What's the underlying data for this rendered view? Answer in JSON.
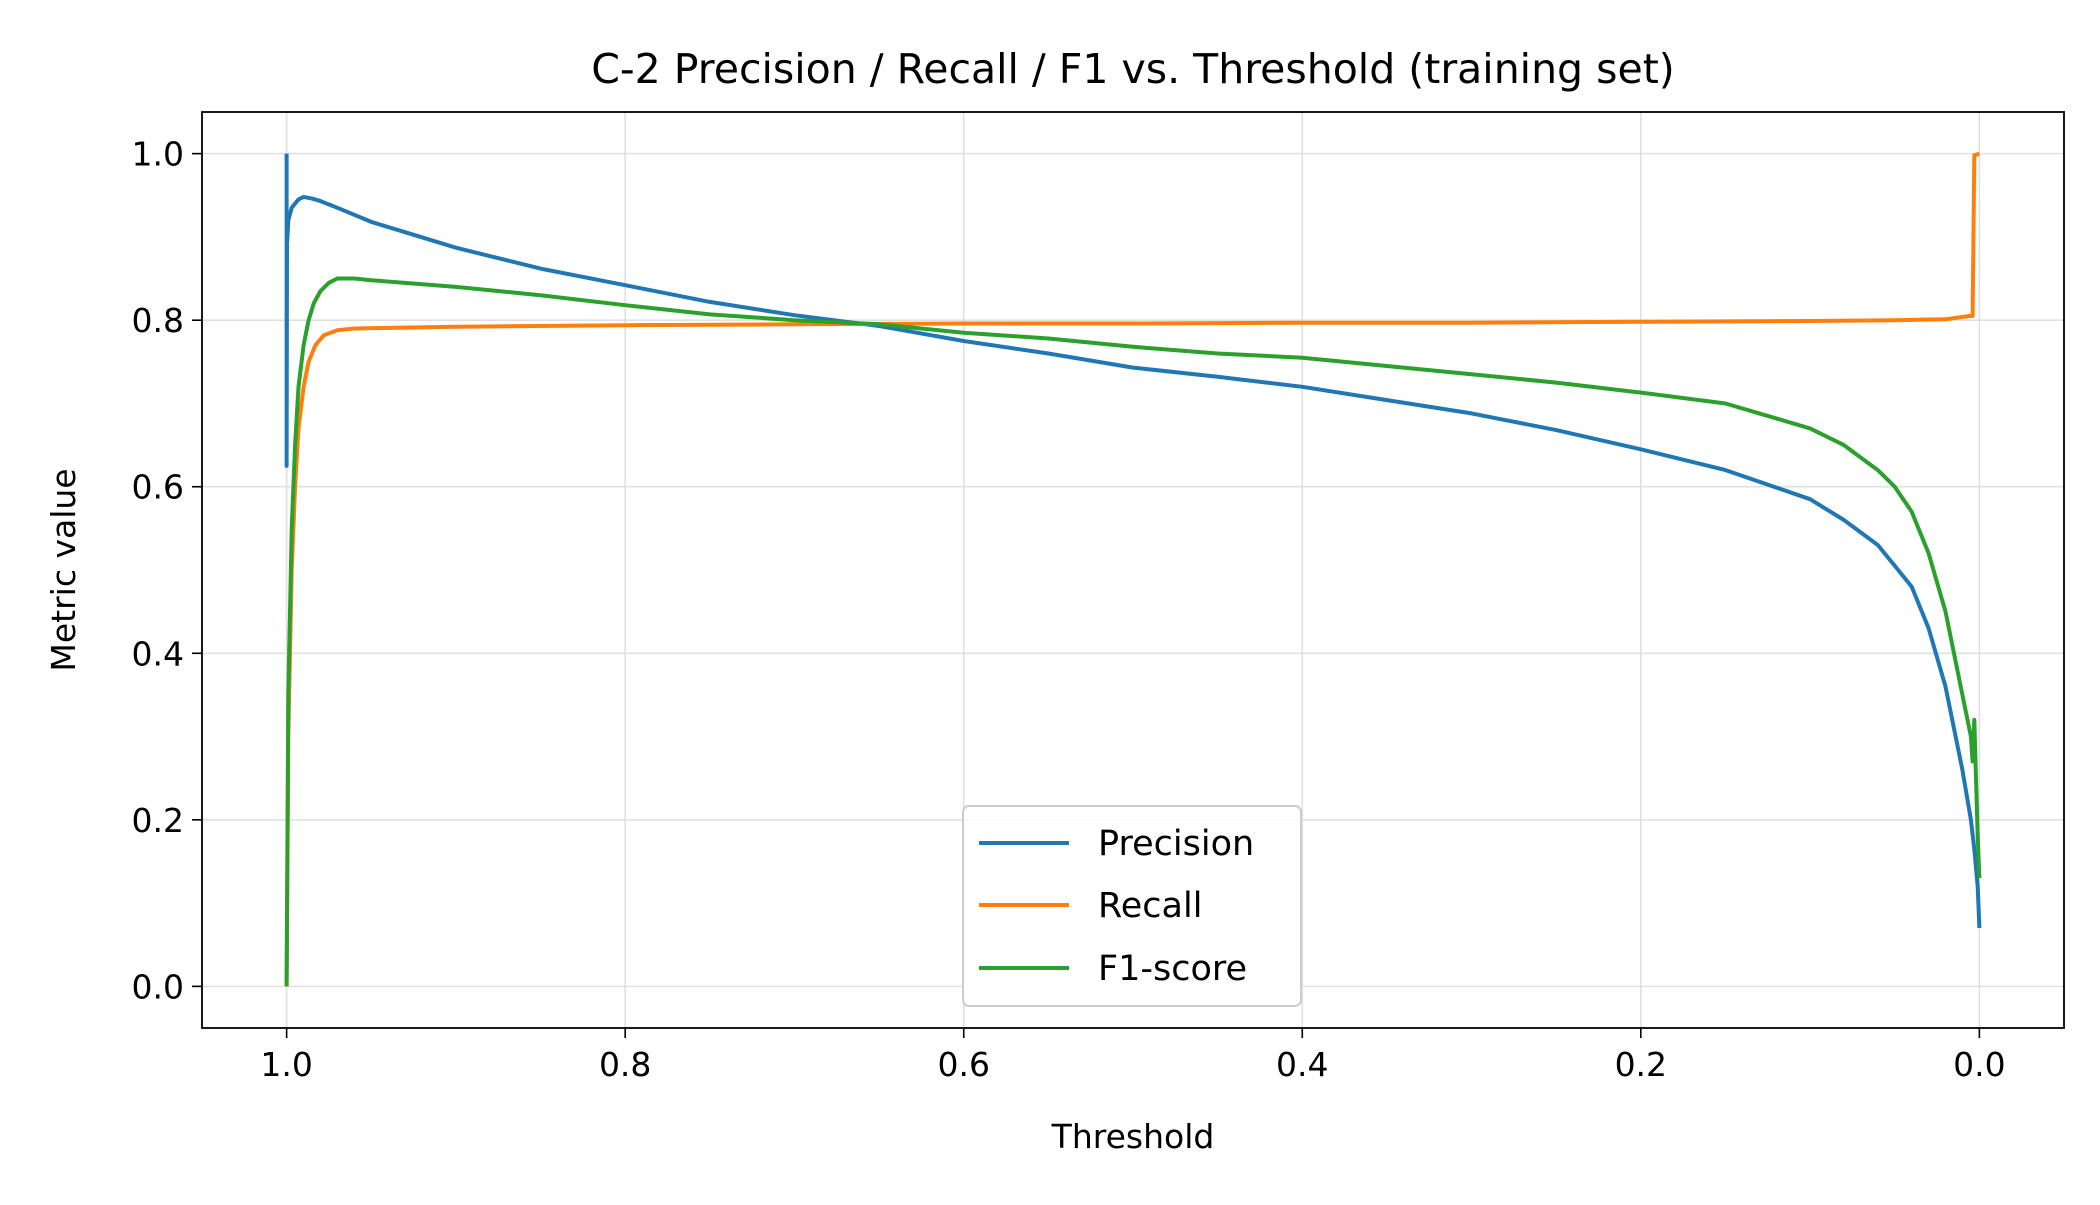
{
  "chart_data": {
    "type": "line",
    "title": "C-2  Precision / Recall / F1  vs.  Threshold  (training set)",
    "xlabel": "Threshold",
    "ylabel": "Metric value",
    "xlim": [
      1.05,
      -0.05
    ],
    "ylim": [
      -0.05,
      1.05
    ],
    "x_inverted": true,
    "x_ticks": [
      {
        "value": 1.0,
        "label": "1.0"
      },
      {
        "value": 0.8,
        "label": "0.8"
      },
      {
        "value": 0.6,
        "label": "0.6"
      },
      {
        "value": 0.4,
        "label": "0.4"
      },
      {
        "value": 0.2,
        "label": "0.2"
      },
      {
        "value": 0.0,
        "label": "0.0"
      }
    ],
    "y_ticks": [
      {
        "value": 0.0,
        "label": "0.0"
      },
      {
        "value": 0.2,
        "label": "0.2"
      },
      {
        "value": 0.4,
        "label": "0.4"
      },
      {
        "value": 0.6,
        "label": "0.6"
      },
      {
        "value": 0.8,
        "label": "0.8"
      },
      {
        "value": 1.0,
        "label": "1.0"
      }
    ],
    "grid": true,
    "legend": {
      "position": "lower-center"
    },
    "series": [
      {
        "name": "Precision",
        "color": "#1f77b4",
        "x": [
          1.0,
          1.0,
          0.9998,
          0.999,
          0.997,
          0.993,
          0.99,
          0.985,
          0.98,
          0.97,
          0.95,
          0.9,
          0.85,
          0.8,
          0.75,
          0.7,
          0.65,
          0.6,
          0.55,
          0.5,
          0.45,
          0.4,
          0.35,
          0.3,
          0.25,
          0.2,
          0.15,
          0.1,
          0.08,
          0.06,
          0.05,
          0.04,
          0.03,
          0.02,
          0.01,
          0.005,
          0.003,
          0.001,
          0.0
        ],
        "y": [
          1.0,
          0.625,
          0.89,
          0.92,
          0.935,
          0.945,
          0.948,
          0.946,
          0.943,
          0.935,
          0.918,
          0.887,
          0.862,
          0.842,
          0.822,
          0.806,
          0.793,
          0.775,
          0.76,
          0.743,
          0.732,
          0.72,
          0.704,
          0.688,
          0.668,
          0.645,
          0.62,
          0.585,
          0.56,
          0.53,
          0.505,
          0.48,
          0.43,
          0.36,
          0.26,
          0.2,
          0.165,
          0.12,
          0.07
        ]
      },
      {
        "name": "Recall",
        "color": "#ff7f0e",
        "x": [
          1.0,
          0.999,
          0.997,
          0.995,
          0.993,
          0.99,
          0.987,
          0.983,
          0.978,
          0.97,
          0.96,
          0.9,
          0.8,
          0.7,
          0.6,
          0.5,
          0.4,
          0.3,
          0.2,
          0.1,
          0.05,
          0.02,
          0.006,
          0.004,
          0.003,
          0.0
        ],
        "y": [
          0.0,
          0.3,
          0.5,
          0.6,
          0.67,
          0.72,
          0.75,
          0.77,
          0.782,
          0.788,
          0.79,
          0.792,
          0.794,
          0.795,
          0.796,
          0.796,
          0.797,
          0.797,
          0.798,
          0.799,
          0.8,
          0.801,
          0.805,
          0.805,
          0.998,
          1.0
        ]
      },
      {
        "name": "F1-score",
        "color": "#2ca02c",
        "x": [
          1.0,
          0.999,
          0.997,
          0.995,
          0.993,
          0.99,
          0.987,
          0.984,
          0.98,
          0.975,
          0.97,
          0.96,
          0.95,
          0.9,
          0.85,
          0.8,
          0.75,
          0.7,
          0.65,
          0.6,
          0.55,
          0.5,
          0.45,
          0.4,
          0.35,
          0.3,
          0.25,
          0.2,
          0.15,
          0.1,
          0.08,
          0.06,
          0.05,
          0.04,
          0.03,
          0.02,
          0.01,
          0.005,
          0.004,
          0.003,
          0.002,
          0.001,
          0.0
        ],
        "y": [
          0.0,
          0.35,
          0.55,
          0.65,
          0.72,
          0.77,
          0.8,
          0.82,
          0.835,
          0.845,
          0.85,
          0.85,
          0.848,
          0.84,
          0.83,
          0.818,
          0.807,
          0.8,
          0.795,
          0.785,
          0.778,
          0.768,
          0.76,
          0.755,
          0.745,
          0.735,
          0.725,
          0.713,
          0.7,
          0.67,
          0.65,
          0.62,
          0.6,
          0.57,
          0.52,
          0.45,
          0.35,
          0.3,
          0.27,
          0.32,
          0.25,
          0.18,
          0.13
        ]
      }
    ]
  }
}
